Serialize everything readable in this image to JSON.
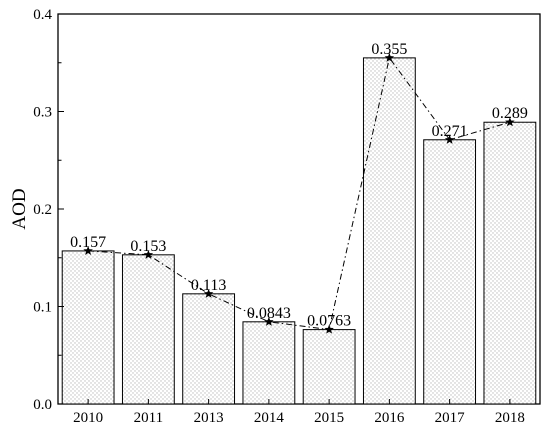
{
  "chart_data": {
    "type": "bar",
    "title": "",
    "xlabel": "",
    "ylabel": "AOD",
    "categories": [
      "2010",
      "2011",
      "2013",
      "2014",
      "2015",
      "2016",
      "2017",
      "2018"
    ],
    "values": [
      0.157,
      0.153,
      0.113,
      0.0843,
      0.0763,
      0.355,
      0.271,
      0.289
    ],
    "data_labels": [
      "0.157",
      "0.153",
      "0.113",
      "0.0843",
      "0.0763",
      "0.355",
      "0.271",
      "0.289"
    ],
    "ylim": [
      0,
      0.4
    ],
    "yticks": [
      "0.0",
      "0.1",
      "0.2",
      "0.3",
      "0.4"
    ],
    "overlay_line": {
      "type": "line",
      "style": "dash-dot",
      "marker": "star",
      "values": [
        0.157,
        0.153,
        0.113,
        0.0843,
        0.0763,
        0.355,
        0.271,
        0.289
      ]
    },
    "bar_fill": "dotted-pattern",
    "grid": false,
    "colors": {
      "bar_edge": "#000000",
      "bar_pattern": "#c8c8c8",
      "line": "#000000"
    }
  }
}
